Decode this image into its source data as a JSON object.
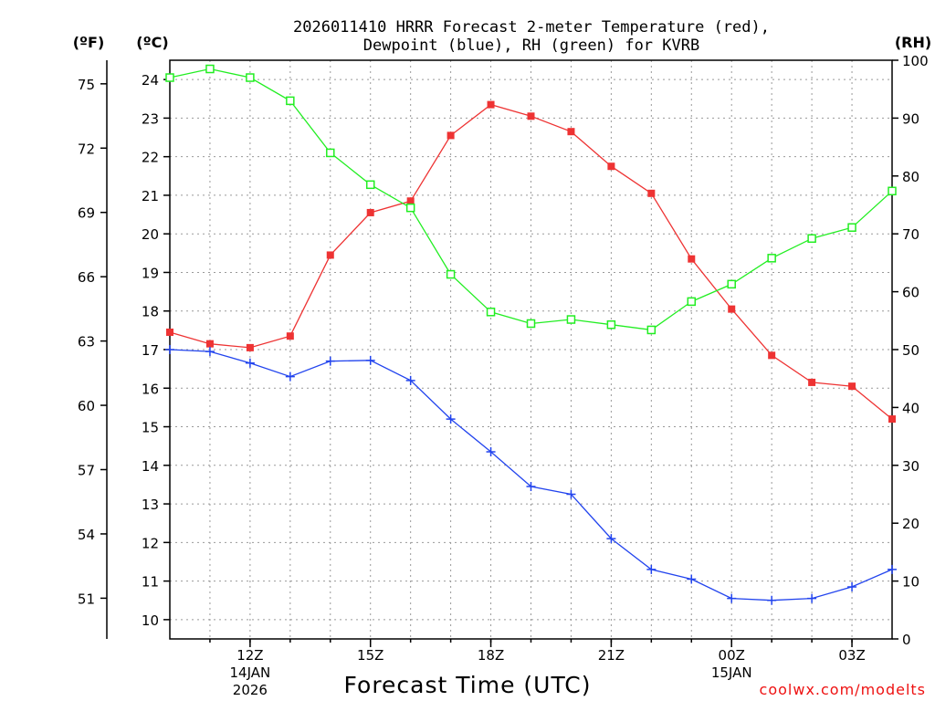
{
  "chart_data": {
    "type": "line",
    "title_line1": "2026011410 HRRR Forecast 2-meter Temperature (red),",
    "title_line2": "Dewpoint (blue), RH (green) for KVRB",
    "xlabel": "Forecast Time (UTC)",
    "credit": "coolwx.com/modelts",
    "unit_f": "(ºF)",
    "unit_c": "(ºC)",
    "unit_rh": "(RH)",
    "x": [
      10,
      11,
      12,
      13,
      14,
      15,
      16,
      17,
      18,
      19,
      20,
      21,
      22,
      23,
      24,
      25,
      26,
      27,
      28
    ],
    "xlim": [
      10,
      28
    ],
    "x_ticks": [
      {
        "x": 12,
        "label": "12Z",
        "sub1": "14JAN",
        "sub2": "2026"
      },
      {
        "x": 15,
        "label": "15Z",
        "sub1": "",
        "sub2": ""
      },
      {
        "x": 18,
        "label": "18Z",
        "sub1": "",
        "sub2": ""
      },
      {
        "x": 21,
        "label": "21Z",
        "sub1": "",
        "sub2": ""
      },
      {
        "x": 24,
        "label": "00Z",
        "sub1": "15JAN",
        "sub2": ""
      },
      {
        "x": 27,
        "label": "03Z",
        "sub1": "",
        "sub2": ""
      }
    ],
    "ylim_c": [
      9.5,
      24.5
    ],
    "yticks_c": [
      "10",
      "11",
      "12",
      "13",
      "14",
      "15",
      "16",
      "17",
      "18",
      "19",
      "20",
      "21",
      "22",
      "23",
      "24"
    ],
    "yticks_f": [
      "51",
      "54",
      "57",
      "60",
      "63",
      "66",
      "69",
      "72",
      "75"
    ],
    "ylim_rh": [
      0,
      100
    ],
    "yticks_rh": [
      "0",
      "10",
      "20",
      "30",
      "40",
      "50",
      "60",
      "70",
      "80",
      "90",
      "100"
    ],
    "series": [
      {
        "name": "Temperature",
        "axis": "C",
        "color": "#ee3333",
        "marker": "filled-square",
        "values": [
          17.45,
          17.15,
          17.05,
          17.35,
          19.45,
          20.55,
          20.85,
          22.55,
          23.35,
          23.05,
          22.65,
          21.75,
          21.05,
          19.35,
          18.05,
          16.85,
          16.15,
          16.05,
          15.2
        ]
      },
      {
        "name": "Dewpoint",
        "axis": "C",
        "color": "#2244ee",
        "marker": "plus",
        "values": [
          17.0,
          16.95,
          16.65,
          16.3,
          16.7,
          16.72,
          16.2,
          15.2,
          14.35,
          13.45,
          13.25,
          12.1,
          11.3,
          11.05,
          10.55,
          10.5,
          10.55,
          10.85,
          11.3
        ]
      },
      {
        "name": "RH",
        "axis": "RH",
        "color": "#22ee22",
        "marker": "open-square",
        "values": [
          97,
          98.5,
          97,
          93,
          84,
          78.5,
          74.5,
          63,
          56.5,
          54.5,
          55.2,
          54.3,
          53.4,
          58.3,
          61.3,
          65.8,
          69.2,
          71.1,
          77.4
        ]
      }
    ]
  }
}
